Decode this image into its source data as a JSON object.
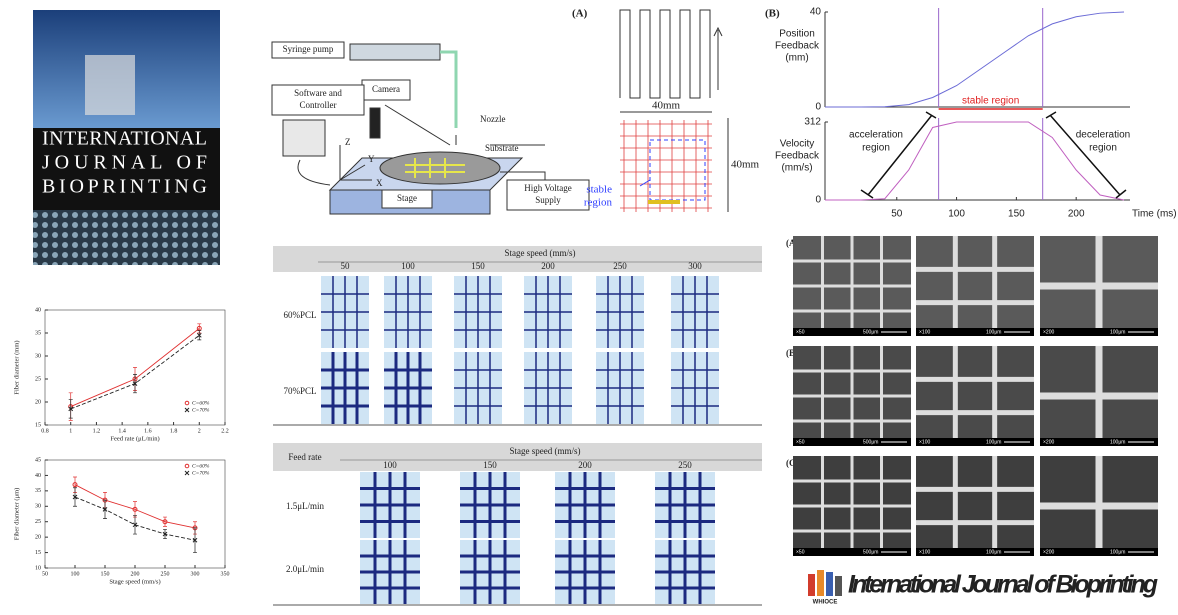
{
  "cover": {
    "title": [
      "INTERNATIONAL",
      "JOURNAL OF",
      "BIOPRINTING"
    ]
  },
  "setup_diagram": {
    "syringe_pump": "Syringe pump",
    "camera": "Camera",
    "software": [
      "Software and",
      "Controller"
    ],
    "nozzle": "Nozzle",
    "substrate": "Substrate",
    "stage": "Stage",
    "high_voltage": [
      "High Voltage",
      "Supply"
    ],
    "z": "Z",
    "y": "Y",
    "x": "X"
  },
  "path_panel": {
    "label": "(A)",
    "width": "40mm",
    "height": "40mm",
    "region": [
      "stable",
      "region"
    ]
  },
  "chart_data": [
    {
      "type": "line",
      "x": [
        1,
        1.5,
        2
      ],
      "xlim": [
        0.8,
        2.2
      ],
      "xticks": [
        0.8,
        1,
        1.2,
        1.4,
        1.6,
        1.8,
        2,
        2.2
      ],
      "ylim": [
        15,
        40
      ],
      "yticks": [
        15,
        20,
        25,
        30,
        35,
        40
      ],
      "xlabel": "Feed rate (μL/min)",
      "ylabel": "Fiber diameter (mm)",
      "legend": "lower right",
      "series": [
        {
          "name": "C=60%",
          "color": "#e03030",
          "marker": "o",
          "values": [
            19,
            25,
            36
          ],
          "errors": [
            3,
            2.5,
            1
          ]
        },
        {
          "name": "C=70%",
          "color": "#222222",
          "marker": "x",
          "dash": true,
          "values": [
            18.5,
            24,
            34.5
          ],
          "errors": [
            2,
            2,
            1
          ]
        }
      ]
    },
    {
      "type": "line",
      "x": [
        100,
        150,
        200,
        250,
        300
      ],
      "xlim": [
        50,
        350
      ],
      "xticks": [
        50,
        100,
        150,
        200,
        250,
        300,
        350
      ],
      "ylim": [
        10,
        45
      ],
      "yticks": [
        10,
        15,
        20,
        25,
        30,
        35,
        40,
        45
      ],
      "xlabel": "Stage speed (mm/s)",
      "ylabel": "Fiber diameter (μm)",
      "legend": "upper right",
      "series": [
        {
          "name": "C=60%",
          "color": "#e03030",
          "marker": "o",
          "values": [
            37,
            32,
            29,
            25,
            23
          ],
          "errors": [
            2.5,
            2.5,
            2.5,
            1.5,
            2
          ]
        },
        {
          "name": "C=70%",
          "color": "#222222",
          "marker": "x",
          "dash": true,
          "values": [
            33,
            29,
            24,
            21,
            19
          ],
          "errors": [
            3,
            3,
            3,
            1.5,
            4
          ]
        }
      ]
    },
    {
      "type": "line",
      "label": "(B)",
      "x": [
        -10,
        0,
        20,
        40,
        60,
        80,
        100,
        120,
        140,
        160,
        180,
        200,
        220,
        240
      ],
      "xlim": [
        -10,
        245
      ],
      "ylim": [
        0,
        40
      ],
      "yticks": [
        0,
        40
      ],
      "ylabel": [
        "Position",
        "Feedback",
        "(mm)"
      ],
      "markers": [
        85,
        172
      ],
      "series": [
        {
          "color": "#6b6bd6",
          "values": [
            0,
            0,
            0,
            0.1,
            1,
            4,
            9,
            16,
            23,
            30,
            35,
            38,
            39.5,
            40
          ]
        }
      ]
    },
    {
      "type": "line",
      "x": [
        -10,
        0,
        20,
        40,
        60,
        80,
        100,
        120,
        140,
        160,
        180,
        200,
        220,
        240
      ],
      "xlim": [
        -10,
        245
      ],
      "xticks": [
        50,
        100,
        150,
        200
      ],
      "ylim": [
        0,
        312
      ],
      "yticks": [
        0,
        312
      ],
      "ylabel": [
        "Velocity",
        "Feedback",
        "(mm/s)"
      ],
      "xlabel": "Time (ms)",
      "markers": [
        85,
        172
      ],
      "annotations": {
        "stable": "stable region",
        "acceleration": [
          "acceleration",
          "region"
        ],
        "deceleration": [
          "deceleration",
          "region"
        ]
      },
      "series": [
        {
          "color": "#c060c0",
          "values": [
            0,
            0,
            0,
            5,
            120,
            290,
            312,
            312,
            312,
            312,
            250,
            120,
            20,
            0
          ]
        }
      ]
    }
  ],
  "table1": {
    "header": "Stage speed (mm/s)",
    "columns": [
      "50",
      "100",
      "150",
      "200",
      "250",
      "300"
    ],
    "rows": [
      "60%PCL",
      "70%PCL"
    ]
  },
  "table2": {
    "row_header": "Feed rate",
    "header": "Stage speed (mm/s)",
    "columns": [
      "100",
      "150",
      "200",
      "250"
    ],
    "rows": [
      "1.5μL/min",
      "2.0μL/min"
    ]
  },
  "sem": {
    "rows": [
      "(A)",
      "(B)",
      "(C)"
    ],
    "magnifications": [
      "×50",
      "×100",
      "×200"
    ],
    "scales": [
      "500μm",
      "100μm",
      "100μm"
    ]
  },
  "logo": {
    "publisher": "WHIOCE",
    "title": "International Journal of Bioprinting"
  }
}
